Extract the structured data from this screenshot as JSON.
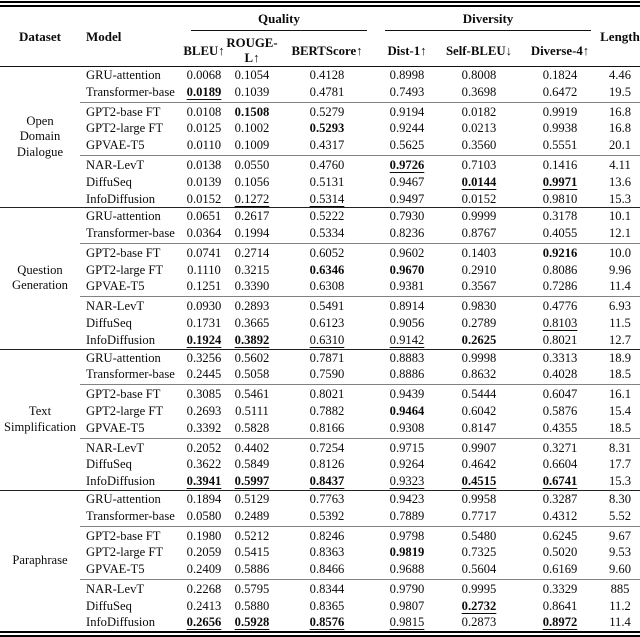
{
  "header": {
    "dataset": "Dataset",
    "model": "Model",
    "quality": "Quality",
    "diversity": "Diversity",
    "length": "Length",
    "subcols": [
      "BLEU↑",
      "ROUGE-L↑",
      "BERTScore↑",
      "Dist-1↑",
      "Self-BLEU↓",
      "Diverse-4↑"
    ]
  },
  "datasets": [
    {
      "name": "Open Domain Dialogue",
      "name_lines": [
        "Open",
        "Domain",
        "Dialogue"
      ],
      "groups": [
        [
          {
            "model": "GRU-attention",
            "values": [
              "0.0068",
              "0.1054",
              "0.4128",
              "0.8998",
              "0.8008",
              "0.1824"
            ],
            "styles": [
              "",
              "",
              "",
              "",
              "",
              ""
            ],
            "length": "4.46"
          },
          {
            "model": "Transformer-base",
            "values": [
              "0.0189",
              "0.1039",
              "0.4781",
              "0.7493",
              "0.3698",
              "0.6472"
            ],
            "styles": [
              "bu",
              "",
              "",
              "",
              "",
              ""
            ],
            "length": "19.5"
          }
        ],
        [
          {
            "model": "GPT2-base FT",
            "values": [
              "0.0108",
              "0.1508",
              "0.5279",
              "0.9194",
              "0.0182",
              "0.9919"
            ],
            "styles": [
              "",
              "b",
              "",
              "",
              "",
              ""
            ],
            "length": "16.8"
          },
          {
            "model": "GPT2-large FT",
            "values": [
              "0.0125",
              "0.1002",
              "0.5293",
              "0.9244",
              "0.0213",
              "0.9938"
            ],
            "styles": [
              "",
              "",
              "b",
              "",
              "",
              ""
            ],
            "length": "16.8"
          },
          {
            "model": "GPVAE-T5",
            "values": [
              "0.0110",
              "0.1009",
              "0.4317",
              "0.5625",
              "0.3560",
              "0.5551"
            ],
            "styles": [
              "",
              "",
              "",
              "",
              "",
              ""
            ],
            "length": "20.1"
          }
        ],
        [
          {
            "model": "NAR-LevT",
            "values": [
              "0.0138",
              "0.0550",
              "0.4760",
              "0.9726",
              "0.7103",
              "0.1416"
            ],
            "styles": [
              "",
              "",
              "",
              "bu",
              "",
              ""
            ],
            "length": "4.11"
          },
          {
            "model": "DiffuSeq",
            "values": [
              "0.0139",
              "0.1056",
              "0.5131",
              "0.9467",
              "0.0144",
              "0.9971"
            ],
            "styles": [
              "",
              "",
              "",
              "",
              "bu",
              "bu"
            ],
            "length": "13.6"
          },
          {
            "model": "InfoDiffusion",
            "values": [
              "0.0152",
              "0.1272",
              "0.5314",
              "0.9497",
              "0.0152",
              "0.9810"
            ],
            "styles": [
              "",
              "u",
              "u",
              "",
              "",
              ""
            ],
            "length": "15.3"
          }
        ]
      ]
    },
    {
      "name": "Question Generation",
      "name_lines": [
        "Question",
        "Generation"
      ],
      "groups": [
        [
          {
            "model": "GRU-attention",
            "values": [
              "0.0651",
              "0.2617",
              "0.5222",
              "0.7930",
              "0.9999",
              "0.3178"
            ],
            "styles": [
              "",
              "",
              "",
              "",
              "",
              ""
            ],
            "length": "10.1"
          },
          {
            "model": "Transformer-base",
            "values": [
              "0.0364",
              "0.1994",
              "0.5334",
              "0.8236",
              "0.8767",
              "0.4055"
            ],
            "styles": [
              "",
              "",
              "",
              "",
              "",
              ""
            ],
            "length": "12.1"
          }
        ],
        [
          {
            "model": "GPT2-base FT",
            "values": [
              "0.0741",
              "0.2714",
              "0.6052",
              "0.9602",
              "0.1403",
              "0.9216"
            ],
            "styles": [
              "",
              "",
              "",
              "",
              "",
              "b"
            ],
            "length": "10.0"
          },
          {
            "model": "GPT2-large FT",
            "values": [
              "0.1110",
              "0.3215",
              "0.6346",
              "0.9670",
              "0.2910",
              "0.8086"
            ],
            "styles": [
              "",
              "",
              "b",
              "b",
              "",
              ""
            ],
            "length": "9.96"
          },
          {
            "model": "GPVAE-T5",
            "values": [
              "0.1251",
              "0.3390",
              "0.6308",
              "0.9381",
              "0.3567",
              "0.7286"
            ],
            "styles": [
              "",
              "",
              "",
              "",
              "",
              ""
            ],
            "length": "11.4"
          }
        ],
        [
          {
            "model": "NAR-LevT",
            "values": [
              "0.0930",
              "0.2893",
              "0.5491",
              "0.8914",
              "0.9830",
              "0.4776"
            ],
            "styles": [
              "",
              "",
              "",
              "",
              "",
              ""
            ],
            "length": "6.93"
          },
          {
            "model": "DiffuSeq",
            "values": [
              "0.1731",
              "0.3665",
              "0.6123",
              "0.9056",
              "0.2789",
              "0.8103"
            ],
            "styles": [
              "",
              "",
              "",
              "",
              "",
              "u"
            ],
            "length": "11.5"
          },
          {
            "model": "InfoDiffusion",
            "values": [
              "0.1924",
              "0.3892",
              "0.6310",
              "0.9142",
              "0.2625",
              "0.8021"
            ],
            "styles": [
              "bu",
              "bu",
              "u",
              "u",
              "b",
              ""
            ],
            "length": "12.7"
          }
        ]
      ]
    },
    {
      "name": "Text Simplification",
      "name_lines": [
        "Text",
        "Simplification"
      ],
      "groups": [
        [
          {
            "model": "GRU-attention",
            "values": [
              "0.3256",
              "0.5602",
              "0.7871",
              "0.8883",
              "0.9998",
              "0.3313"
            ],
            "styles": [
              "",
              "",
              "",
              "",
              "",
              ""
            ],
            "length": "18.9"
          },
          {
            "model": "Transformer-base",
            "values": [
              "0.2445",
              "0.5058",
              "0.7590",
              "0.8886",
              "0.8632",
              "0.4028"
            ],
            "styles": [
              "",
              "",
              "",
              "",
              "",
              ""
            ],
            "length": "18.5"
          }
        ],
        [
          {
            "model": "GPT2-base FT",
            "values": [
              "0.3085",
              "0.5461",
              "0.8021",
              "0.9439",
              "0.5444",
              "0.6047"
            ],
            "styles": [
              "",
              "",
              "",
              "",
              "",
              ""
            ],
            "length": "16.1"
          },
          {
            "model": "GPT2-large FT",
            "values": [
              "0.2693",
              "0.5111",
              "0.7882",
              "0.9464",
              "0.6042",
              "0.5876"
            ],
            "styles": [
              "",
              "",
              "",
              "b",
              "",
              ""
            ],
            "length": "15.4"
          },
          {
            "model": "GPVAE-T5",
            "values": [
              "0.3392",
              "0.5828",
              "0.8166",
              "0.9308",
              "0.8147",
              "0.4355"
            ],
            "styles": [
              "",
              "",
              "",
              "",
              "",
              ""
            ],
            "length": "18.5"
          }
        ],
        [
          {
            "model": "NAR-LevT",
            "values": [
              "0.2052",
              "0.4402",
              "0.7254",
              "0.9715",
              "0.9907",
              "0.3271"
            ],
            "styles": [
              "",
              "",
              "",
              "",
              "",
              ""
            ],
            "length": "8.31"
          },
          {
            "model": "DiffuSeq",
            "values": [
              "0.3622",
              "0.5849",
              "0.8126",
              "0.9264",
              "0.4642",
              "0.6604"
            ],
            "styles": [
              "",
              "",
              "",
              "",
              "",
              ""
            ],
            "length": "17.7"
          },
          {
            "model": "InfoDiffusion",
            "values": [
              "0.3941",
              "0.5997",
              "0.8437",
              "0.9323",
              "0.4515",
              "0.6741"
            ],
            "styles": [
              "bu",
              "bu",
              "bu",
              "u",
              "bu",
              "bu"
            ],
            "length": "15.3"
          }
        ]
      ]
    },
    {
      "name": "Paraphrase",
      "name_lines": [
        "Paraphrase"
      ],
      "groups": [
        [
          {
            "model": "GRU-attention",
            "values": [
              "0.1894",
              "0.5129",
              "0.7763",
              "0.9423",
              "0.9958",
              "0.3287"
            ],
            "styles": [
              "",
              "",
              "",
              "",
              "",
              ""
            ],
            "length": "8.30"
          },
          {
            "model": "Transformer-base",
            "values": [
              "0.0580",
              "0.2489",
              "0.5392",
              "0.7889",
              "0.7717",
              "0.4312"
            ],
            "styles": [
              "",
              "",
              "",
              "",
              "",
              ""
            ],
            "length": "5.52"
          }
        ],
        [
          {
            "model": "GPT2-base FT",
            "values": [
              "0.1980",
              "0.5212",
              "0.8246",
              "0.9798",
              "0.5480",
              "0.6245"
            ],
            "styles": [
              "",
              "",
              "",
              "",
              "",
              ""
            ],
            "length": "9.67"
          },
          {
            "model": "GPT2-large FT",
            "values": [
              "0.2059",
              "0.5415",
              "0.8363",
              "0.9819",
              "0.7325",
              "0.5020"
            ],
            "styles": [
              "",
              "",
              "",
              "b",
              "",
              ""
            ],
            "length": "9.53"
          },
          {
            "model": "GPVAE-T5",
            "values": [
              "0.2409",
              "0.5886",
              "0.8466",
              "0.9688",
              "0.5604",
              "0.6169"
            ],
            "styles": [
              "",
              "",
              "",
              "",
              "",
              ""
            ],
            "length": "9.60"
          }
        ],
        [
          {
            "model": "NAR-LevT",
            "values": [
              "0.2268",
              "0.5795",
              "0.8344",
              "0.9790",
              "0.9995",
              "0.3329"
            ],
            "styles": [
              "",
              "",
              "",
              "",
              "",
              ""
            ],
            "length": "885"
          },
          {
            "model": "DiffuSeq",
            "values": [
              "0.2413",
              "0.5880",
              "0.8365",
              "0.9807",
              "0.2732",
              "0.8641"
            ],
            "styles": [
              "",
              "",
              "",
              "",
              "bu",
              ""
            ],
            "length": "11.2"
          },
          {
            "model": "InfoDiffusion",
            "values": [
              "0.2656",
              "0.5928",
              "0.8576",
              "0.9815",
              "0.2873",
              "0.8972"
            ],
            "styles": [
              "bu",
              "bu",
              "bu",
              "u",
              "",
              "bu"
            ],
            "length": "11.4"
          }
        ]
      ]
    }
  ]
}
